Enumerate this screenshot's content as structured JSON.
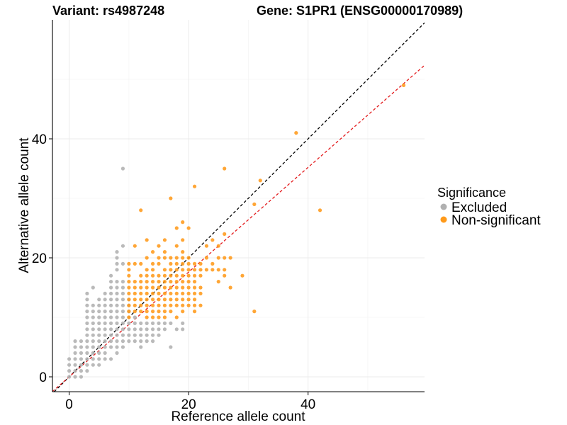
{
  "colors": {
    "excluded": "#b0b0b0",
    "non_significant": "#ff9a1a",
    "identity_line": "#000000",
    "fit_line": "#e31a1c"
  },
  "chart_data": {
    "type": "scatter",
    "title_left": "Variant: rs4987248",
    "title_right": "Gene: S1PR1 (ENSG00000170989)",
    "xlabel": "Reference allele count",
    "ylabel": "Alternative allele count",
    "xlim": [
      -2.8,
      59.5
    ],
    "ylim": [
      -2.5,
      60
    ],
    "x_ticks": [
      0,
      20,
      40
    ],
    "y_ticks": [
      0,
      20,
      40
    ],
    "grid": true,
    "legend": {
      "title": "Significance",
      "position": "right",
      "entries": [
        "Excluded",
        "Non-significant"
      ]
    },
    "reference_lines": [
      {
        "kind": "identity",
        "style": "dashed",
        "color": "#000000",
        "slope": 1,
        "intercept": 0
      },
      {
        "kind": "fit",
        "style": "dashed",
        "color": "#e31a1c",
        "slope": 0.88,
        "intercept": 0
      }
    ],
    "series": [
      {
        "name": "Excluded",
        "color": "#b0b0b0",
        "points": [
          [
            0,
            0
          ],
          [
            0,
            1
          ],
          [
            1,
            0
          ],
          [
            1,
            1
          ],
          [
            1,
            2
          ],
          [
            2,
            0
          ],
          [
            2,
            1
          ],
          [
            2,
            2
          ],
          [
            2,
            3
          ],
          [
            1,
            3
          ],
          [
            0,
            2
          ],
          [
            3,
            1
          ],
          [
            3,
            2
          ],
          [
            3,
            3
          ],
          [
            3,
            4
          ],
          [
            1,
            5
          ],
          [
            1,
            6
          ],
          [
            2,
            4
          ],
          [
            2,
            5
          ],
          [
            4,
            2
          ],
          [
            4,
            3
          ],
          [
            4,
            4
          ],
          [
            4,
            5
          ],
          [
            4,
            6
          ],
          [
            3,
            5
          ],
          [
            3,
            6
          ],
          [
            3,
            7
          ],
          [
            3,
            8
          ],
          [
            4,
            7
          ],
          [
            4,
            8
          ],
          [
            4,
            9
          ],
          [
            4,
            10
          ],
          [
            4,
            11
          ],
          [
            4,
            12
          ],
          [
            3,
            9
          ],
          [
            3,
            10
          ],
          [
            3,
            11
          ],
          [
            3,
            12
          ],
          [
            3,
            13
          ],
          [
            3,
            14
          ],
          [
            5,
            3
          ],
          [
            5,
            4
          ],
          [
            5,
            5
          ],
          [
            5,
            6
          ],
          [
            5,
            7
          ],
          [
            5,
            8
          ],
          [
            5,
            9
          ],
          [
            5,
            10
          ],
          [
            5,
            11
          ],
          [
            5,
            12
          ],
          [
            5,
            13
          ],
          [
            4,
            15
          ],
          [
            6,
            4
          ],
          [
            6,
            5
          ],
          [
            6,
            6
          ],
          [
            6,
            7
          ],
          [
            6,
            8
          ],
          [
            6,
            9
          ],
          [
            6,
            10
          ],
          [
            6,
            11
          ],
          [
            6,
            12
          ],
          [
            6,
            13
          ],
          [
            6,
            14
          ],
          [
            7,
            3
          ],
          [
            7,
            5
          ],
          [
            7,
            6
          ],
          [
            7,
            7
          ],
          [
            7,
            8
          ],
          [
            7,
            9
          ],
          [
            7,
            10
          ],
          [
            7,
            11
          ],
          [
            7,
            12
          ],
          [
            7,
            13
          ],
          [
            7,
            14
          ],
          [
            7,
            15
          ],
          [
            7,
            16
          ],
          [
            7,
            17
          ],
          [
            8,
            4
          ],
          [
            8,
            6
          ],
          [
            8,
            7
          ],
          [
            8,
            8
          ],
          [
            8,
            9
          ],
          [
            8,
            10
          ],
          [
            8,
            11
          ],
          [
            8,
            12
          ],
          [
            8,
            13
          ],
          [
            8,
            14
          ],
          [
            8,
            15
          ],
          [
            8,
            16
          ],
          [
            8,
            18
          ],
          [
            8,
            19
          ],
          [
            8,
            20
          ],
          [
            8,
            21
          ],
          [
            9,
            5
          ],
          [
            9,
            7
          ],
          [
            9,
            8
          ],
          [
            9,
            9
          ],
          [
            9,
            10
          ],
          [
            9,
            11
          ],
          [
            9,
            12
          ],
          [
            9,
            13
          ],
          [
            9,
            14
          ],
          [
            9,
            15
          ],
          [
            9,
            16
          ],
          [
            9,
            19
          ],
          [
            9,
            22
          ],
          [
            9,
            35
          ],
          [
            10,
            6
          ],
          [
            10,
            7
          ],
          [
            10,
            8
          ],
          [
            10,
            9
          ],
          [
            10,
            10
          ],
          [
            10,
            11
          ],
          [
            10,
            12
          ],
          [
            10,
            13
          ],
          [
            11,
            6
          ],
          [
            11,
            7
          ],
          [
            11,
            8
          ],
          [
            11,
            9
          ],
          [
            11,
            10
          ],
          [
            12,
            5
          ],
          [
            12,
            6
          ],
          [
            12,
            7
          ],
          [
            12,
            8
          ],
          [
            12,
            9
          ],
          [
            13,
            6
          ],
          [
            13,
            7
          ],
          [
            13,
            8
          ],
          [
            13,
            9
          ],
          [
            14,
            6
          ],
          [
            14,
            7
          ],
          [
            14,
            8
          ],
          [
            14,
            9
          ],
          [
            15,
            7
          ],
          [
            15,
            8
          ],
          [
            15,
            9
          ],
          [
            16,
            8
          ],
          [
            16,
            9
          ],
          [
            17,
            5
          ],
          [
            17,
            9
          ],
          [
            18,
            8
          ],
          [
            19,
            8
          ],
          [
            19,
            9
          ],
          [
            1,
            4
          ],
          [
            2,
            6
          ],
          [
            0,
            3
          ],
          [
            5,
            2
          ],
          [
            6,
            3
          ],
          [
            8,
            5
          ],
          [
            9,
            6
          ]
        ]
      },
      {
        "name": "Non-significant",
        "color": "#ff9a1a",
        "points": [
          [
            10,
            10
          ],
          [
            10,
            11
          ],
          [
            10,
            12
          ],
          [
            10,
            13
          ],
          [
            10,
            14
          ],
          [
            10,
            15
          ],
          [
            10,
            16
          ],
          [
            10,
            17
          ],
          [
            10,
            18
          ],
          [
            10,
            19
          ],
          [
            11,
            11
          ],
          [
            11,
            12
          ],
          [
            11,
            13
          ],
          [
            11,
            14
          ],
          [
            11,
            15
          ],
          [
            11,
            16
          ],
          [
            11,
            19
          ],
          [
            11,
            22
          ],
          [
            12,
            11
          ],
          [
            12,
            12
          ],
          [
            12,
            13
          ],
          [
            12,
            14
          ],
          [
            12,
            15
          ],
          [
            12,
            16
          ],
          [
            12,
            17
          ],
          [
            12,
            19
          ],
          [
            12,
            28
          ],
          [
            13,
            10
          ],
          [
            13,
            11
          ],
          [
            13,
            12
          ],
          [
            13,
            13
          ],
          [
            13,
            14
          ],
          [
            13,
            15
          ],
          [
            13,
            16
          ],
          [
            13,
            17
          ],
          [
            13,
            18
          ],
          [
            13,
            20
          ],
          [
            13,
            23
          ],
          [
            14,
            10
          ],
          [
            14,
            11
          ],
          [
            14,
            12
          ],
          [
            14,
            13
          ],
          [
            14,
            14
          ],
          [
            14,
            15
          ],
          [
            14,
            16
          ],
          [
            14,
            17
          ],
          [
            14,
            18
          ],
          [
            14,
            19
          ],
          [
            14,
            21
          ],
          [
            15,
            10
          ],
          [
            15,
            11
          ],
          [
            15,
            12
          ],
          [
            15,
            13
          ],
          [
            15,
            14
          ],
          [
            15,
            15
          ],
          [
            15,
            16
          ],
          [
            15,
            17
          ],
          [
            15,
            19
          ],
          [
            15,
            20
          ],
          [
            15,
            22
          ],
          [
            16,
            10
          ],
          [
            16,
            11
          ],
          [
            16,
            12
          ],
          [
            16,
            13
          ],
          [
            16,
            14
          ],
          [
            16,
            15
          ],
          [
            16,
            16
          ],
          [
            16,
            17
          ],
          [
            16,
            18
          ],
          [
            16,
            20
          ],
          [
            16,
            21
          ],
          [
            16,
            23
          ],
          [
            17,
            11
          ],
          [
            17,
            12
          ],
          [
            17,
            13
          ],
          [
            17,
            14
          ],
          [
            17,
            15
          ],
          [
            17,
            16
          ],
          [
            17,
            17
          ],
          [
            17,
            18
          ],
          [
            17,
            19
          ],
          [
            17,
            20
          ],
          [
            17,
            30
          ],
          [
            18,
            10
          ],
          [
            18,
            12
          ],
          [
            18,
            13
          ],
          [
            18,
            14
          ],
          [
            18,
            15
          ],
          [
            18,
            16
          ],
          [
            18,
            17
          ],
          [
            18,
            18
          ],
          [
            18,
            19
          ],
          [
            18,
            20
          ],
          [
            18,
            22
          ],
          [
            18,
            25
          ],
          [
            19,
            11
          ],
          [
            19,
            12
          ],
          [
            19,
            13
          ],
          [
            19,
            14
          ],
          [
            19,
            15
          ],
          [
            19,
            16
          ],
          [
            19,
            17
          ],
          [
            19,
            18
          ],
          [
            19,
            19
          ],
          [
            19,
            20
          ],
          [
            19,
            21
          ],
          [
            19,
            23
          ],
          [
            19,
            26
          ],
          [
            20,
            12
          ],
          [
            20,
            13
          ],
          [
            20,
            14
          ],
          [
            20,
            15
          ],
          [
            20,
            16
          ],
          [
            20,
            17
          ],
          [
            20,
            18
          ],
          [
            20,
            19
          ],
          [
            20,
            20
          ],
          [
            20,
            25
          ],
          [
            21,
            11
          ],
          [
            21,
            12
          ],
          [
            21,
            13
          ],
          [
            21,
            14
          ],
          [
            21,
            15
          ],
          [
            21,
            16
          ],
          [
            21,
            17
          ],
          [
            21,
            18
          ],
          [
            21,
            19
          ],
          [
            21,
            32
          ],
          [
            22,
            12
          ],
          [
            22,
            14
          ],
          [
            22,
            15
          ],
          [
            22,
            17
          ],
          [
            22,
            18
          ],
          [
            22,
            19
          ],
          [
            23,
            18
          ],
          [
            23,
            20
          ],
          [
            23,
            22
          ],
          [
            24,
            18
          ],
          [
            24,
            19
          ],
          [
            24,
            23
          ],
          [
            25,
            16
          ],
          [
            25,
            18
          ],
          [
            25,
            20
          ],
          [
            25,
            22
          ],
          [
            26,
            17
          ],
          [
            26,
            18
          ],
          [
            26,
            20
          ],
          [
            26,
            24
          ],
          [
            26,
            35
          ],
          [
            27,
            15
          ],
          [
            27,
            20
          ],
          [
            29,
            17
          ],
          [
            31,
            11
          ],
          [
            31,
            29
          ],
          [
            32,
            33
          ],
          [
            38,
            41
          ],
          [
            42,
            28
          ],
          [
            56,
            49
          ]
        ]
      }
    ]
  }
}
